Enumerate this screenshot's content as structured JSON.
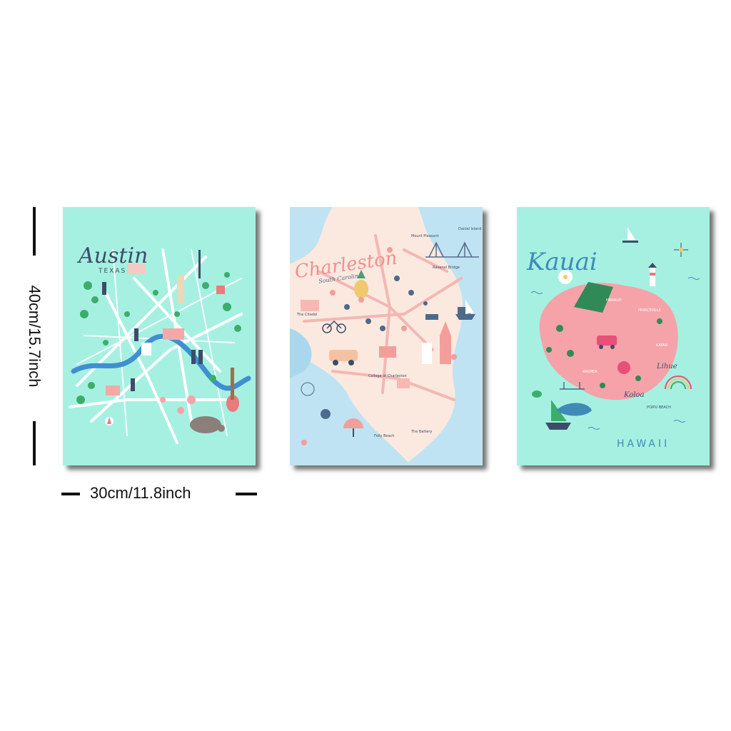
{
  "dimensions": {
    "height_label": "40cm/15.7inch",
    "width_label": "30cm/11.8inch"
  },
  "posters": [
    {
      "city": "Austin",
      "region": "TEXAS",
      "background": "#a6f0e2",
      "accent": "#e87c7c"
    },
    {
      "city": "Charleston",
      "region": "South Carolina",
      "background": "#fbe9df",
      "accent": "#f2a7a7",
      "labels": {
        "citadel": "The Citadel",
        "bridge": "Ravenel Bridge",
        "battery": "The Battery",
        "college": "College of Charleston",
        "folly": "Folly Beach",
        "mount": "Mount Pleasant",
        "isle": "Daniel Island"
      }
    },
    {
      "city": "Kauai",
      "region": "HAWAII",
      "background": "#a6f0e2",
      "accent": "#f5a3a8",
      "labels": {
        "lihue": "Lihue",
        "koloa": "Koloa",
        "hanalei": "HANALEI",
        "princeville": "PRINCEVILLE",
        "waimea": "WAIMEA",
        "kapaa": "KAPAA",
        "poipu": "POIPU BEACH"
      }
    }
  ]
}
